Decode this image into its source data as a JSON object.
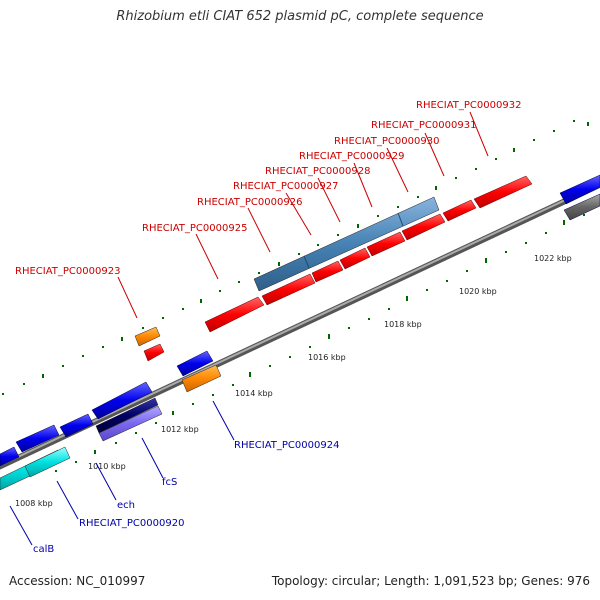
{
  "title": "Rhizobium etli CIAT 652 plasmid pC, complete sequence",
  "footer": {
    "accession": "Accession: NC_010997",
    "topology": "Topology: circular; Length: 1,091,523 bp; Genes: 976"
  },
  "colors": {
    "forward_gene": "#ff0000",
    "reverse_gene": "#0000ee",
    "orange_gene": "#ff8800",
    "cyan_gene": "#00e0e0",
    "steelblue_gene": "#4682b4",
    "navy_gene": "#000066",
    "lavender_gene": "#7b68ee",
    "gray_gene": "#666666",
    "forward_label": "#cc0000",
    "reverse_label": "#0000aa",
    "tick_green": "#006600"
  },
  "scale_labels": [
    "1008 kbp",
    "1010 kbp",
    "1012 kbp",
    "1014 kbp",
    "1016 kbp",
    "1018 kbp",
    "1020 kbp",
    "1022 kbp"
  ],
  "gene_labels_top": [
    "RHECIAT_PC0000923",
    "RHECIAT_PC0000925",
    "RHECIAT_PC0000926",
    "RHECIAT_PC0000927",
    "RHECIAT_PC0000928",
    "RHECIAT_PC0000929",
    "RHECIAT_PC0000930",
    "RHECIAT_PC0000931",
    "RHECIAT_PC0000932"
  ],
  "gene_labels_bottom": [
    "RHECIAT_PC0000924",
    "fcS",
    "ech",
    "RHECIAT_PC0000920",
    "calB"
  ]
}
